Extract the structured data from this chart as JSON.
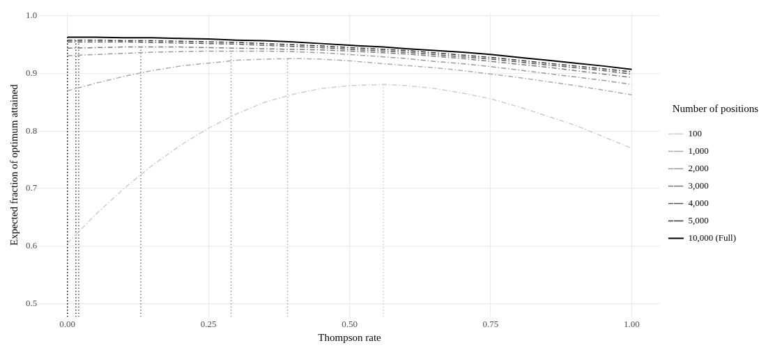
{
  "chart_data": {
    "type": "line",
    "xlabel": "Thompson rate",
    "ylabel": "Expected fraction of optimum attained",
    "legend_title": "Number of positions",
    "legend": "right",
    "grid": true,
    "marker": "none",
    "xlim": [
      -0.05,
      1.05
    ],
    "xticks": [
      {
        "value": 0,
        "label": "0.00"
      },
      0.25,
      {
        "value": 0.5,
        "label": "0.50"
      },
      0.75,
      {
        "value": 1,
        "label": "1.00"
      }
    ],
    "ylim": [
      0.477,
      1.005
    ],
    "yticks": [
      0.5,
      0.6,
      0.7,
      0.8,
      0.9,
      {
        "value": 1,
        "label": "1.0"
      }
    ],
    "x": [
      0,
      0.05,
      0.1,
      0.15,
      0.2,
      0.25,
      0.3,
      0.35,
      0.4,
      0.45,
      0.5,
      0.56,
      0.6,
      0.65,
      0.7,
      0.75,
      0.8,
      0.85,
      0.9,
      0.95,
      1.0
    ],
    "series": [
      {
        "name": "100",
        "color": "#cccccc",
        "line_style": "dashed",
        "values": [
          0.605,
          0.655,
          0.7,
          0.74,
          0.775,
          0.805,
          0.83,
          0.85,
          0.864,
          0.874,
          0.879,
          0.881,
          0.879,
          0.874,
          0.866,
          0.856,
          0.842,
          0.826,
          0.81,
          0.79,
          0.77
        ]
      },
      {
        "name": "1,000",
        "color": "#aaaaaa",
        "line_style": "dashed",
        "values": [
          0.87,
          0.883,
          0.895,
          0.905,
          0.913,
          0.918,
          0.923,
          0.925,
          0.926,
          0.925,
          0.922,
          0.917,
          0.914,
          0.91,
          0.905,
          0.899,
          0.893,
          0.886,
          0.879,
          0.871,
          0.863
        ]
      },
      {
        "name": "2,000",
        "color": "#999999",
        "line_style": "dashed",
        "values": [
          0.931,
          0.933,
          0.935,
          0.937,
          0.938,
          0.939,
          0.939,
          0.939,
          0.938,
          0.936,
          0.933,
          0.929,
          0.926,
          0.921,
          0.917,
          0.912,
          0.906,
          0.9,
          0.894,
          0.888,
          0.881
        ]
      },
      {
        "name": "3,000",
        "color": "#777777",
        "line_style": "dashed",
        "values": [
          0.944,
          0.945,
          0.946,
          0.946,
          0.946,
          0.945,
          0.944,
          0.943,
          0.942,
          0.941,
          0.939,
          0.936,
          0.934,
          0.93,
          0.926,
          0.921,
          0.916,
          0.911,
          0.905,
          0.899,
          0.893
        ]
      },
      {
        "name": "4,000",
        "color": "#555555",
        "line_style": "dashed",
        "values": [
          0.955,
          0.955,
          0.955,
          0.954,
          0.953,
          0.952,
          0.951,
          0.949,
          0.947,
          0.945,
          0.942,
          0.939,
          0.937,
          0.933,
          0.929,
          0.925,
          0.92,
          0.915,
          0.91,
          0.905,
          0.899
        ]
      },
      {
        "name": "5,000",
        "color": "#333333",
        "line_style": "dashed",
        "values": [
          0.958,
          0.958,
          0.957,
          0.957,
          0.956,
          0.955,
          0.954,
          0.952,
          0.95,
          0.948,
          0.945,
          0.942,
          0.94,
          0.936,
          0.932,
          0.928,
          0.923,
          0.918,
          0.913,
          0.908,
          0.903
        ]
      },
      {
        "name": "10,000 (Full)",
        "color": "#000000",
        "line_style": "solid",
        "values": [
          0.963,
          0.963,
          0.962,
          0.962,
          0.961,
          0.96,
          0.958,
          0.957,
          0.955,
          0.952,
          0.949,
          0.946,
          0.943,
          0.94,
          0.937,
          0.933,
          0.928,
          0.923,
          0.918,
          0.913,
          0.907
        ]
      },
      {
        "color": "#cccccc",
        "line_style": "dotted",
        "x": [
          0.56,
          0.56
        ],
        "values": [
          0.477,
          0.881
        ]
      },
      {
        "color": "#aaaaaa",
        "line_style": "dotted",
        "x": [
          0.39,
          0.39
        ],
        "values": [
          0.477,
          0.926
        ]
      },
      {
        "color": "#999999",
        "line_style": "dotted",
        "x": [
          0.29,
          0.29
        ],
        "values": [
          0.477,
          0.939
        ]
      },
      {
        "color": "#777777",
        "line_style": "dotted",
        "x": [
          0.13,
          0.13
        ],
        "values": [
          0.477,
          0.946
        ]
      },
      {
        "color": "#555555",
        "line_style": "dotted",
        "x": [
          0.02,
          0.02
        ],
        "values": [
          0.477,
          0.955
        ]
      },
      {
        "color": "#333333",
        "line_style": "dotted",
        "x": [
          0.015,
          0.015
        ],
        "values": [
          0.477,
          0.958
        ]
      },
      {
        "color": "#000000",
        "line_style": "dotted",
        "x": [
          0,
          0
        ],
        "values": [
          0.477,
          0.963
        ]
      }
    ]
  }
}
